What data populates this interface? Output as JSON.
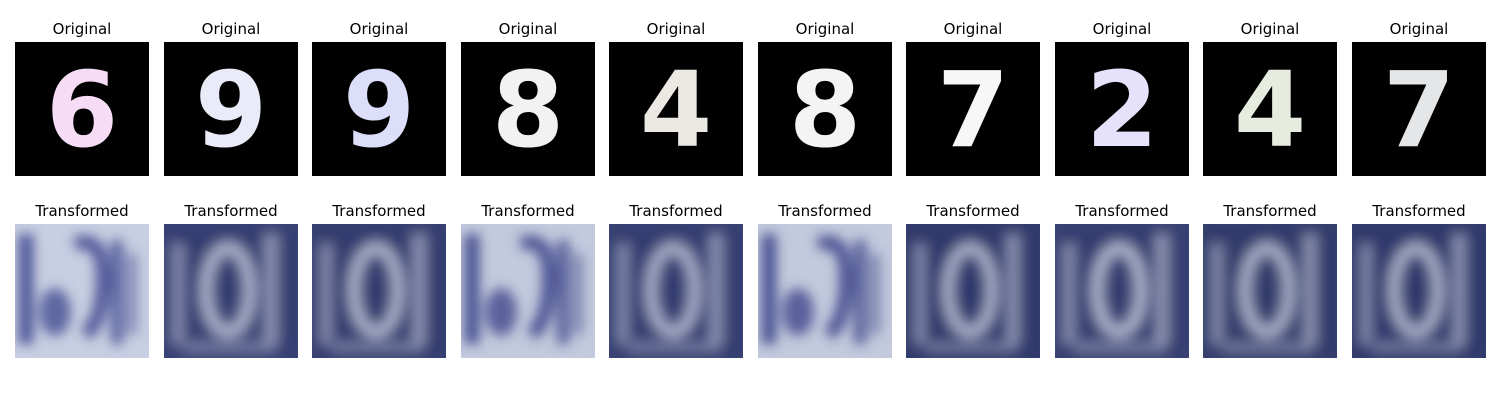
{
  "rows": [
    {
      "title": "Original",
      "panels": [
        {
          "digit": "6",
          "fg": "#f6dcf4",
          "bg": "#000000"
        },
        {
          "digit": "9",
          "fg": "#e9ecf8",
          "bg": "#000000"
        },
        {
          "digit": "9",
          "fg": "#dcdefa",
          "bg": "#000000"
        },
        {
          "digit": "8",
          "fg": "#f2f2f2",
          "bg": "#000000"
        },
        {
          "digit": "4",
          "fg": "#ece8e4",
          "bg": "#000000"
        },
        {
          "digit": "8",
          "fg": "#f4f4f4",
          "bg": "#000000"
        },
        {
          "digit": "7",
          "fg": "#f7f7f7",
          "bg": "#000000"
        },
        {
          "digit": "2",
          "fg": "#e6e2fb",
          "bg": "#000000"
        },
        {
          "digit": "4",
          "fg": "#e6ede0",
          "bg": "#000000"
        },
        {
          "digit": "7",
          "fg": "#e4e6e8",
          "bg": "#000000"
        }
      ]
    },
    {
      "title": "Transformed",
      "panels": [
        {
          "variant": "light",
          "bg": "#c9cfe2",
          "ink": "#2f3a86"
        },
        {
          "variant": "dark",
          "bg": "#3c4678",
          "ink": "#c6cadb"
        },
        {
          "variant": "dark",
          "bg": "#3a4474",
          "ink": "#c6cadb"
        },
        {
          "variant": "light",
          "bg": "#c4cadd",
          "ink": "#2c3580"
        },
        {
          "variant": "dark",
          "bg": "#3b4576",
          "ink": "#c0c6d8"
        },
        {
          "variant": "light",
          "bg": "#c4cadd",
          "ink": "#2c3580"
        },
        {
          "variant": "dark",
          "bg": "#343e6e",
          "ink": "#c2c8d8"
        },
        {
          "variant": "dark",
          "bg": "#3c4676",
          "ink": "#c8ccdc"
        },
        {
          "variant": "dark",
          "bg": "#38426f",
          "ink": "#c2c8d8"
        },
        {
          "variant": "dark",
          "bg": "#343e6e",
          "ink": "#c2c8d8"
        }
      ]
    }
  ]
}
